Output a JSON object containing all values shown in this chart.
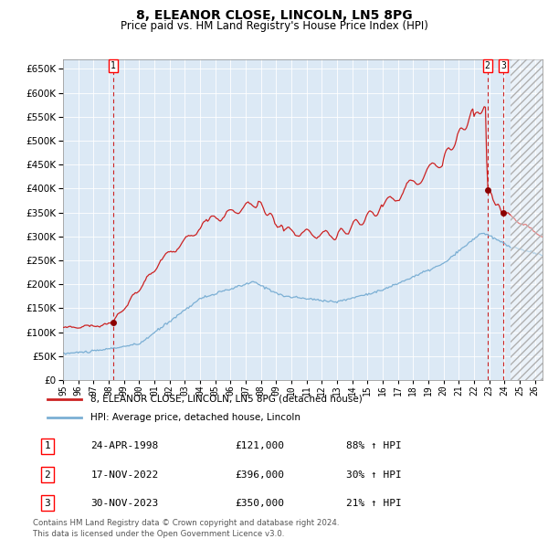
{
  "title": "8, ELEANOR CLOSE, LINCOLN, LN5 8PG",
  "subtitle": "Price paid vs. HM Land Registry's House Price Index (HPI)",
  "title_fontsize": 10,
  "subtitle_fontsize": 8.5,
  "plot_bg_color": "#dce9f5",
  "hpi_line_color": "#7bafd4",
  "price_line_color": "#cc2222",
  "marker_color": "#8b0000",
  "dashed_line_color": "#cc2222",
  "legend_label_red": "8, ELEANOR CLOSE, LINCOLN, LN5 8PG (detached house)",
  "legend_label_blue": "HPI: Average price, detached house, Lincoln",
  "transactions": [
    {
      "id": 1,
      "date": "24-APR-1998",
      "year": 1998.3,
      "price": 121000,
      "pct": "88% ↑ HPI"
    },
    {
      "id": 2,
      "date": "17-NOV-2022",
      "year": 2022.88,
      "price": 396000,
      "pct": "30% ↑ HPI"
    },
    {
      "id": 3,
      "date": "30-NOV-2023",
      "year": 2023.92,
      "price": 350000,
      "pct": "21% ↑ HPI"
    }
  ],
  "footer": "Contains HM Land Registry data © Crown copyright and database right 2024.\nThis data is licensed under the Open Government Licence v3.0.",
  "ylim": [
    0,
    670000
  ],
  "xlim_start": 1995.0,
  "xlim_end": 2026.5,
  "hatch_start": 2024.4
}
